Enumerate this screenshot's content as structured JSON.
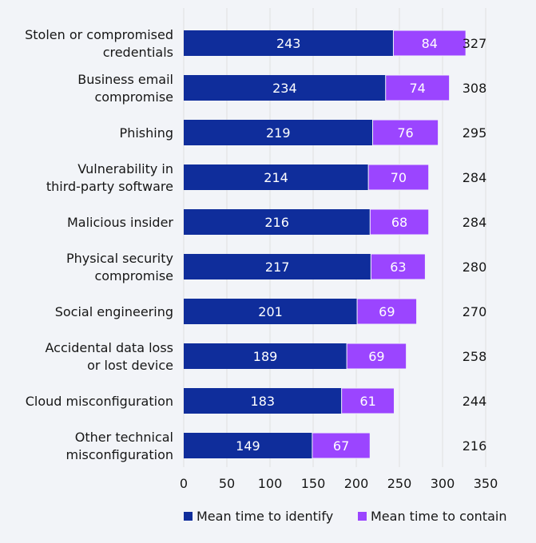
{
  "chart_data": {
    "type": "bar",
    "stacked": true,
    "orientation": "horizontal",
    "categories": [
      [
        "Stolen or compromised",
        "credentials"
      ],
      [
        "Business email",
        "compromise"
      ],
      [
        "Phishing"
      ],
      [
        "Vulnerability in",
        "third-party software"
      ],
      [
        "Malicious insider"
      ],
      [
        "Physical security",
        "compromise"
      ],
      [
        "Social engineering"
      ],
      [
        "Accidental data loss",
        "or lost device"
      ],
      [
        "Cloud misconfiguration"
      ],
      [
        "Other technical",
        "misconfiguration"
      ]
    ],
    "series": [
      {
        "name": "Mean time to identify",
        "color": "#0f2d9b",
        "values": [
          243,
          234,
          219,
          214,
          216,
          217,
          201,
          189,
          183,
          149
        ]
      },
      {
        "name": "Mean time to contain",
        "color": "#9b45ff",
        "values": [
          84,
          74,
          76,
          70,
          68,
          63,
          69,
          69,
          61,
          67
        ]
      }
    ],
    "totals": [
      327,
      308,
      295,
      284,
      284,
      280,
      270,
      258,
      244,
      216
    ],
    "xlim": [
      0,
      350
    ],
    "xticks": [
      0,
      50,
      100,
      150,
      200,
      250,
      300,
      350
    ],
    "grid": true,
    "legend_position": "bottom"
  }
}
